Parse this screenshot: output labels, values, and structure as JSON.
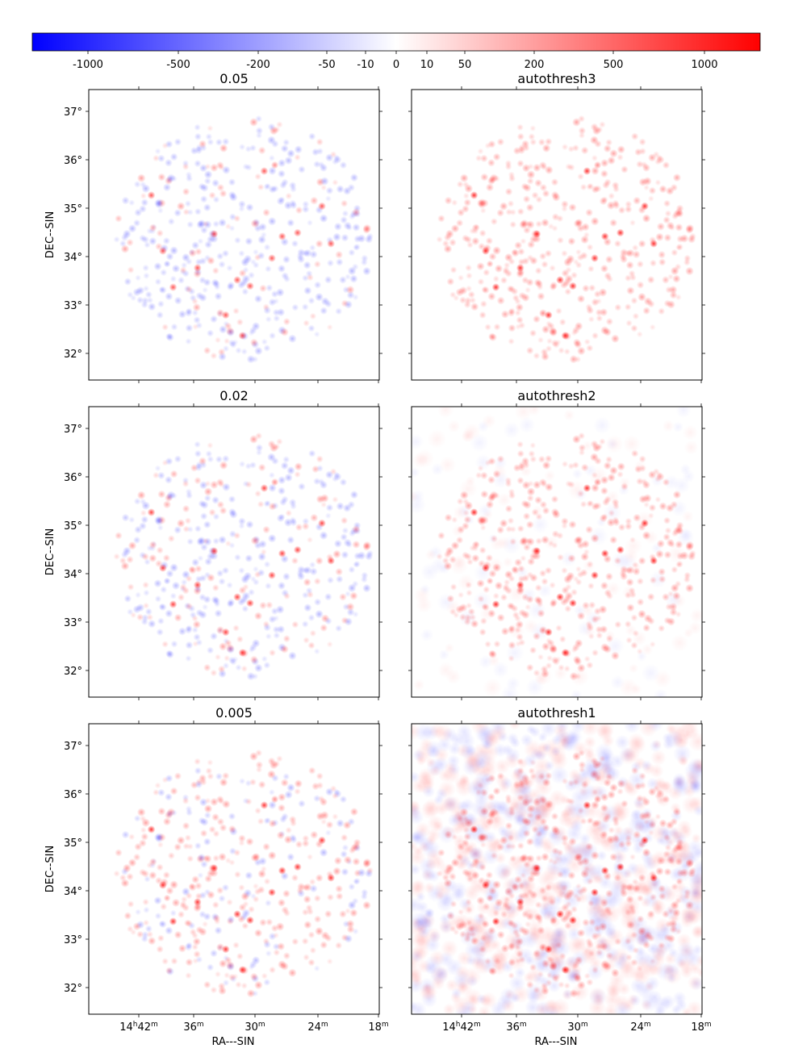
{
  "colorbar": {
    "tick_labels": [
      "-1000",
      "-500",
      "-200",
      "-50",
      "-10",
      "0",
      "10",
      "50",
      "200",
      "500",
      "1000"
    ],
    "colors": {
      "negative": "#0000ff",
      "neutral": "#ffffff",
      "positive": "#ff0000"
    }
  },
  "axes_labels": {
    "ylabel": "DEC--SIN",
    "xlabel": "RA---SIN",
    "y_ticks": [
      "37°",
      "36°",
      "35°",
      "34°",
      "33°",
      "32°"
    ],
    "x_ticks": [
      "14h42m",
      "36m",
      "30m",
      "24m",
      "18m"
    ]
  },
  "chart_data": [
    {
      "type": "heatmap",
      "title": "0.05",
      "cmap": "bwr",
      "field": "circular",
      "background": "none",
      "balance": -0.55,
      "strong_sources": 0.3
    },
    {
      "type": "heatmap",
      "title": "autothresh3",
      "cmap": "bwr",
      "field": "circular",
      "background": "none",
      "balance": 1.0,
      "strong_sources": 0.6
    },
    {
      "type": "heatmap",
      "title": "0.02",
      "cmap": "bwr",
      "field": "circular",
      "background": "none",
      "balance": -0.3,
      "strong_sources": 0.45
    },
    {
      "type": "heatmap",
      "title": "autothresh2",
      "cmap": "bwr",
      "field": "circular",
      "background": "faint",
      "balance": 1.0,
      "strong_sources": 0.65
    },
    {
      "type": "heatmap",
      "title": "0.005",
      "cmap": "bwr",
      "field": "circular",
      "background": "none",
      "balance": 0.4,
      "strong_sources": 0.55
    },
    {
      "type": "heatmap",
      "title": "autothresh1",
      "cmap": "bwr",
      "field": "full",
      "background": "noisy",
      "balance": 1.0,
      "strong_sources": 0.7
    }
  ]
}
